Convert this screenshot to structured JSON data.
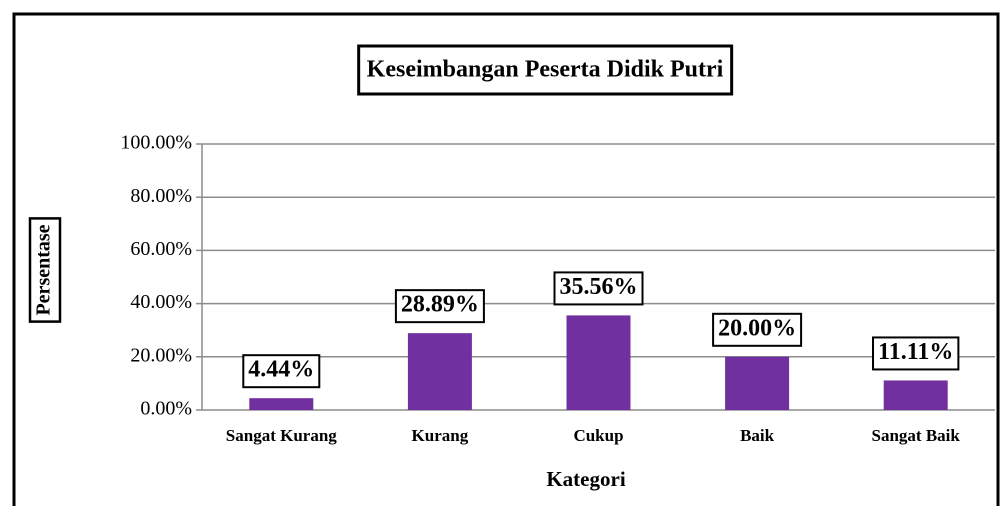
{
  "chart_data": {
    "type": "bar",
    "title": "Keseimbangan Peserta Didik Putri",
    "x_label": "Kategori",
    "y_label": "Persentase",
    "categories": [
      "Sangat Kurang",
      "Kurang",
      "Cukup",
      "Baik",
      "Sangat Baik"
    ],
    "values": [
      4.44,
      28.89,
      35.56,
      20.0,
      11.11
    ],
    "value_labels": [
      "4.44%",
      "28.89%",
      "35.56%",
      "20.00%",
      "11.11%"
    ],
    "color": "#7030a0",
    "ylim": [
      0,
      100
    ],
    "yticks": [
      {
        "value": 0,
        "label": "0.00%"
      },
      {
        "value": 20,
        "label": "20.00%"
      },
      {
        "value": 40,
        "label": "40.00%"
      },
      {
        "value": 60,
        "label": "60.00%"
      },
      {
        "value": 80,
        "label": "80.00%"
      },
      {
        "value": 100,
        "label": "100.00%"
      }
    ],
    "grid": true
  }
}
